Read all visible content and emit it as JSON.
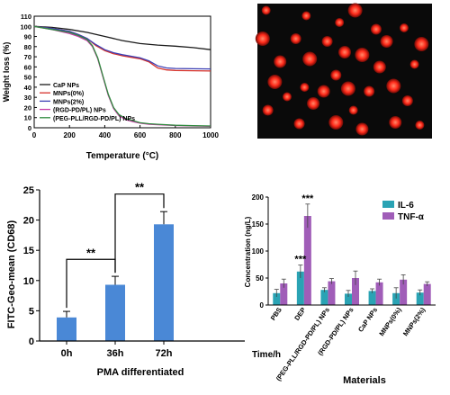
{
  "chart_data": [
    {
      "type": "line",
      "xlabel": "Temperature (°C)",
      "ylabel": "Weight loss (%)",
      "xlim": [
        0,
        1000
      ],
      "ylim": [
        0,
        110
      ],
      "xticks": [
        "0",
        "200",
        "400",
        "600",
        "800",
        "1000"
      ],
      "yticks": [
        "0",
        "10",
        "20",
        "30",
        "40",
        "50",
        "60",
        "70",
        "80",
        "90",
        "100",
        "110"
      ],
      "legend_position": "bottom-left",
      "series": [
        {
          "name": "CaP NPs",
          "color": "#1a1a1a",
          "points": [
            [
              0,
              100
            ],
            [
              100,
              99
            ],
            [
              200,
              97
            ],
            [
              300,
              94
            ],
            [
              400,
              90
            ],
            [
              500,
              86
            ],
            [
              600,
              83
            ],
            [
              700,
              81.5
            ],
            [
              800,
              80.5
            ],
            [
              900,
              79
            ],
            [
              1000,
              77
            ]
          ]
        },
        {
          "name": "MNPs(0%)",
          "color": "#d6322b",
          "points": [
            [
              0,
              100
            ],
            [
              100,
              98
            ],
            [
              200,
              95
            ],
            [
              250,
              92
            ],
            [
              300,
              88
            ],
            [
              350,
              81
            ],
            [
              400,
              76
            ],
            [
              450,
              73
            ],
            [
              500,
              71
            ],
            [
              550,
              69.5
            ],
            [
              600,
              68
            ],
            [
              650,
              65
            ],
            [
              700,
              59
            ],
            [
              750,
              57
            ],
            [
              800,
              56.5
            ],
            [
              900,
              56.2
            ],
            [
              1000,
              56
            ]
          ]
        },
        {
          "name": "MNPs(2%)",
          "color": "#3c3fb4",
          "points": [
            [
              0,
              100
            ],
            [
              100,
              98
            ],
            [
              200,
              95
            ],
            [
              250,
              92
            ],
            [
              300,
              88
            ],
            [
              350,
              82
            ],
            [
              400,
              77
            ],
            [
              450,
              74
            ],
            [
              500,
              72
            ],
            [
              550,
              70.5
            ],
            [
              600,
              69
            ],
            [
              650,
              66
            ],
            [
              700,
              61
            ],
            [
              750,
              59
            ],
            [
              800,
              58.5
            ],
            [
              900,
              58.2
            ],
            [
              1000,
              58
            ]
          ]
        },
        {
          "name": "(RGD-PD/PL) NPs",
          "color": "#c73aa6",
          "points": [
            [
              0,
              100
            ],
            [
              100,
              97
            ],
            [
              200,
              93
            ],
            [
              250,
              90
            ],
            [
              300,
              86
            ],
            [
              330,
              80
            ],
            [
              360,
              68
            ],
            [
              390,
              50
            ],
            [
              420,
              32
            ],
            [
              450,
              19
            ],
            [
              480,
              12
            ],
            [
              520,
              8
            ],
            [
              560,
              6
            ],
            [
              600,
              4.5
            ],
            [
              650,
              3.5
            ],
            [
              700,
              3
            ],
            [
              800,
              2.2
            ],
            [
              900,
              1.8
            ],
            [
              1000,
              1.5
            ]
          ]
        },
        {
          "name": "(PEG-PLL/RGD-PD/PL) NPs",
          "color": "#2f8a3e",
          "points": [
            [
              0,
              100
            ],
            [
              100,
              97
            ],
            [
              200,
              94
            ],
            [
              250,
              91
            ],
            [
              300,
              87
            ],
            [
              330,
              81
            ],
            [
              360,
              69
            ],
            [
              390,
              51
            ],
            [
              420,
              33
            ],
            [
              450,
              20
            ],
            [
              480,
              13
            ],
            [
              520,
              9
            ],
            [
              560,
              7
            ],
            [
              600,
              5
            ],
            [
              650,
              4
            ],
            [
              700,
              3.5
            ],
            [
              800,
              2.5
            ],
            [
              900,
              2
            ],
            [
              1000,
              1.8
            ]
          ]
        }
      ]
    },
    {
      "type": "image",
      "description_hidden": true,
      "background": "#0a0a0a",
      "spot_color": "#ff2a1a",
      "spots": [
        [
          0.05,
          0.05
        ],
        [
          0.03,
          0.26
        ],
        [
          0.13,
          0.43
        ],
        [
          0.22,
          0.26
        ],
        [
          0.28,
          0.09
        ],
        [
          0.3,
          0.41
        ],
        [
          0.32,
          0.74
        ],
        [
          0.4,
          0.28
        ],
        [
          0.47,
          0.14
        ],
        [
          0.56,
          0.05
        ],
        [
          0.5,
          0.36
        ],
        [
          0.45,
          0.53
        ],
        [
          0.27,
          0.62
        ],
        [
          0.6,
          0.38
        ],
        [
          0.7,
          0.47
        ],
        [
          0.64,
          0.65
        ],
        [
          0.55,
          0.79
        ],
        [
          0.45,
          0.88
        ],
        [
          0.79,
          0.88
        ],
        [
          0.86,
          0.72
        ],
        [
          0.9,
          0.45
        ],
        [
          0.78,
          0.61
        ],
        [
          0.74,
          0.28
        ],
        [
          0.06,
          0.79
        ],
        [
          0.17,
          0.69
        ],
        [
          0.1,
          0.58
        ],
        [
          0.38,
          0.65
        ],
        [
          0.68,
          0.19
        ],
        [
          0.84,
          0.18
        ],
        [
          0.94,
          0.3
        ],
        [
          0.6,
          0.93
        ],
        [
          0.24,
          0.89
        ],
        [
          0.93,
          0.9
        ],
        [
          0.52,
          0.63
        ]
      ]
    },
    {
      "type": "bar",
      "ylabel": "FITC-Geo-mean (CD68)",
      "xlabel": "PMA differentiated",
      "unit_label": "Time/h",
      "categories": [
        "0h",
        "36h",
        "72h"
      ],
      "values": [
        3.9,
        9.3,
        19.3
      ],
      "errors": [
        1.0,
        1.4,
        2.1
      ],
      "ylim": [
        0,
        25
      ],
      "yticks": [
        "0",
        "5",
        "10",
        "15",
        "20",
        "25"
      ],
      "color": "#4a88d6",
      "significance": [
        {
          "from": 0,
          "to": 1,
          "label": "**"
        },
        {
          "from": 1,
          "to": 2,
          "label": "**"
        }
      ]
    },
    {
      "type": "bar",
      "ylabel": "Concentration (ng/L)",
      "xlabel": "Materials",
      "categories": [
        "PBS",
        "DEP",
        "(PEG-PLL/RGD-PD/PL) NPs",
        "(RGD-PD/PL) NPs",
        "CaP NPs",
        "MNPs(0%)",
        "MNPs(2%)"
      ],
      "ylim": [
        0,
        200
      ],
      "yticks": [
        "0",
        "50",
        "100",
        "150",
        "200"
      ],
      "legend_position": "top-right",
      "series": [
        {
          "name": "IL-6",
          "color": "#2aa3b4",
          "values": [
            22,
            62,
            28,
            21,
            26,
            22,
            23
          ],
          "errors": [
            7,
            12,
            4,
            6,
            4,
            10,
            5
          ]
        },
        {
          "name": "TNF-α",
          "color": "#a05db8",
          "values": [
            40,
            165,
            44,
            50,
            42,
            47,
            39
          ],
          "errors": [
            8,
            22,
            5,
            13,
            6,
            9,
            4
          ]
        }
      ],
      "annotations": [
        {
          "category": 1,
          "series": 0,
          "label": "***"
        },
        {
          "category": 1,
          "series": 1,
          "label": "***"
        }
      ]
    }
  ]
}
